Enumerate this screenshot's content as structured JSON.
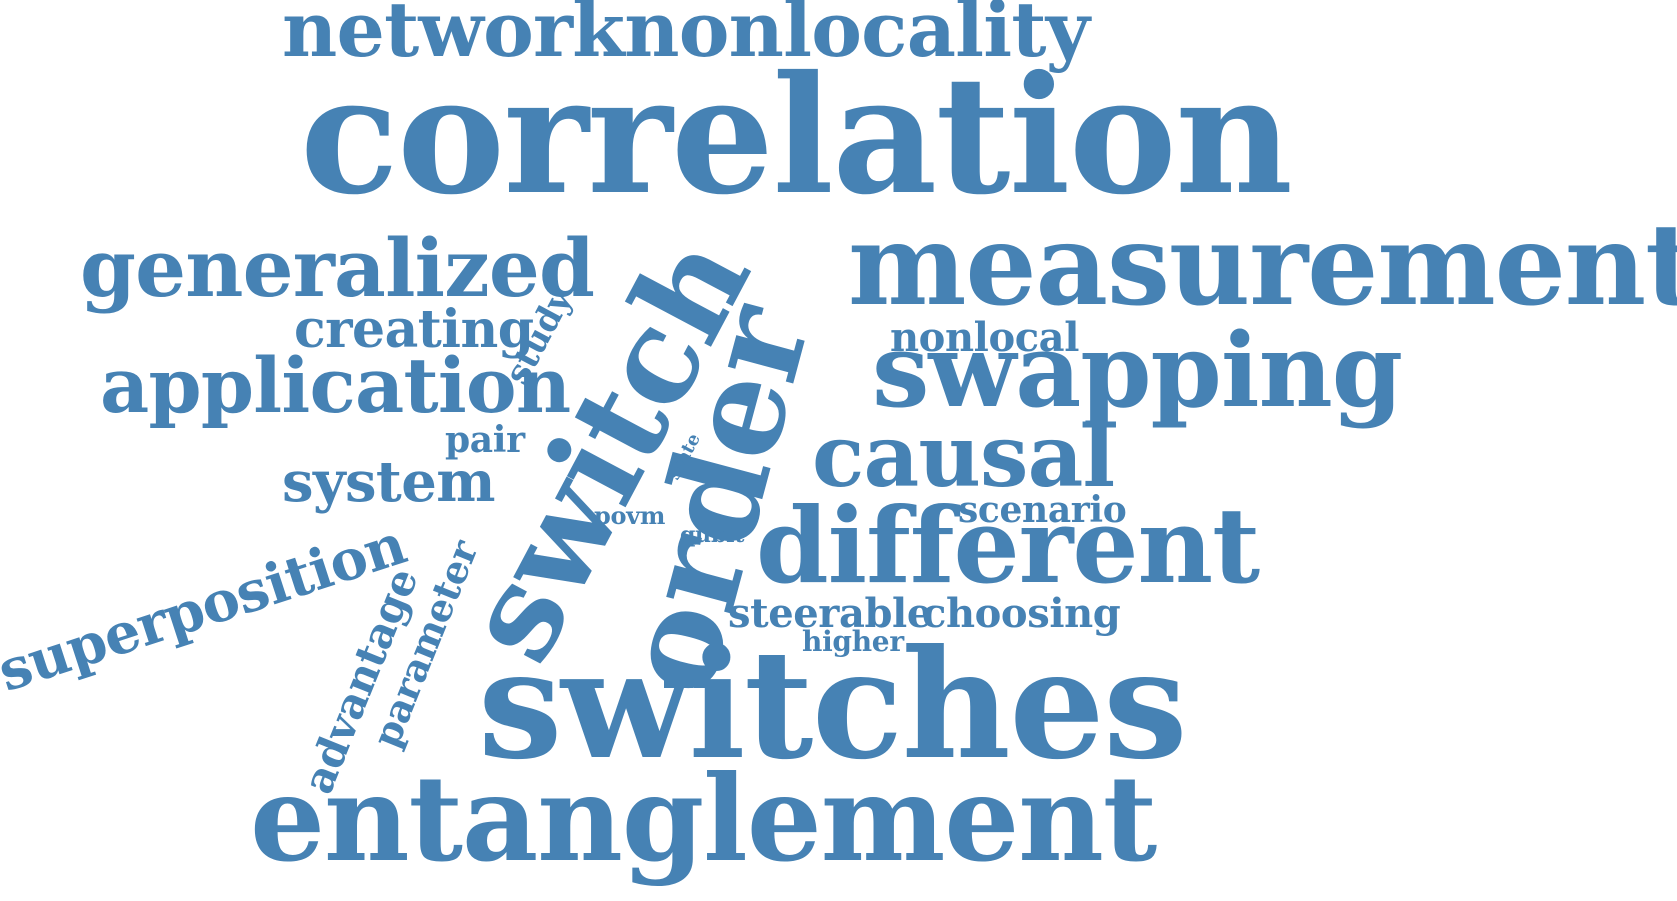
{
  "cloud": {
    "color": "#4682b4",
    "background": "#ffffff",
    "words": {
      "networknonlocality": "networknonlocality",
      "correlation": "correlation",
      "measurement": "measurement",
      "generalized": "generalized",
      "creating": "creating",
      "nonlocal": "nonlocal",
      "swapping": "swapping",
      "application": "application",
      "study": "study",
      "switch": "switch",
      "order": "order",
      "pair": "pair",
      "state": "state",
      "causal": "causal",
      "system": "system",
      "scenario": "scenario",
      "povm": "povm",
      "qubit": "qubit",
      "different": "different",
      "superposition": "superposition",
      "advantage": "advantage",
      "parameter": "parameter",
      "steerable": "steerable",
      "choosing": "choosing",
      "higher": "higher",
      "switches": "switches",
      "entanglement": "entanglement"
    }
  }
}
